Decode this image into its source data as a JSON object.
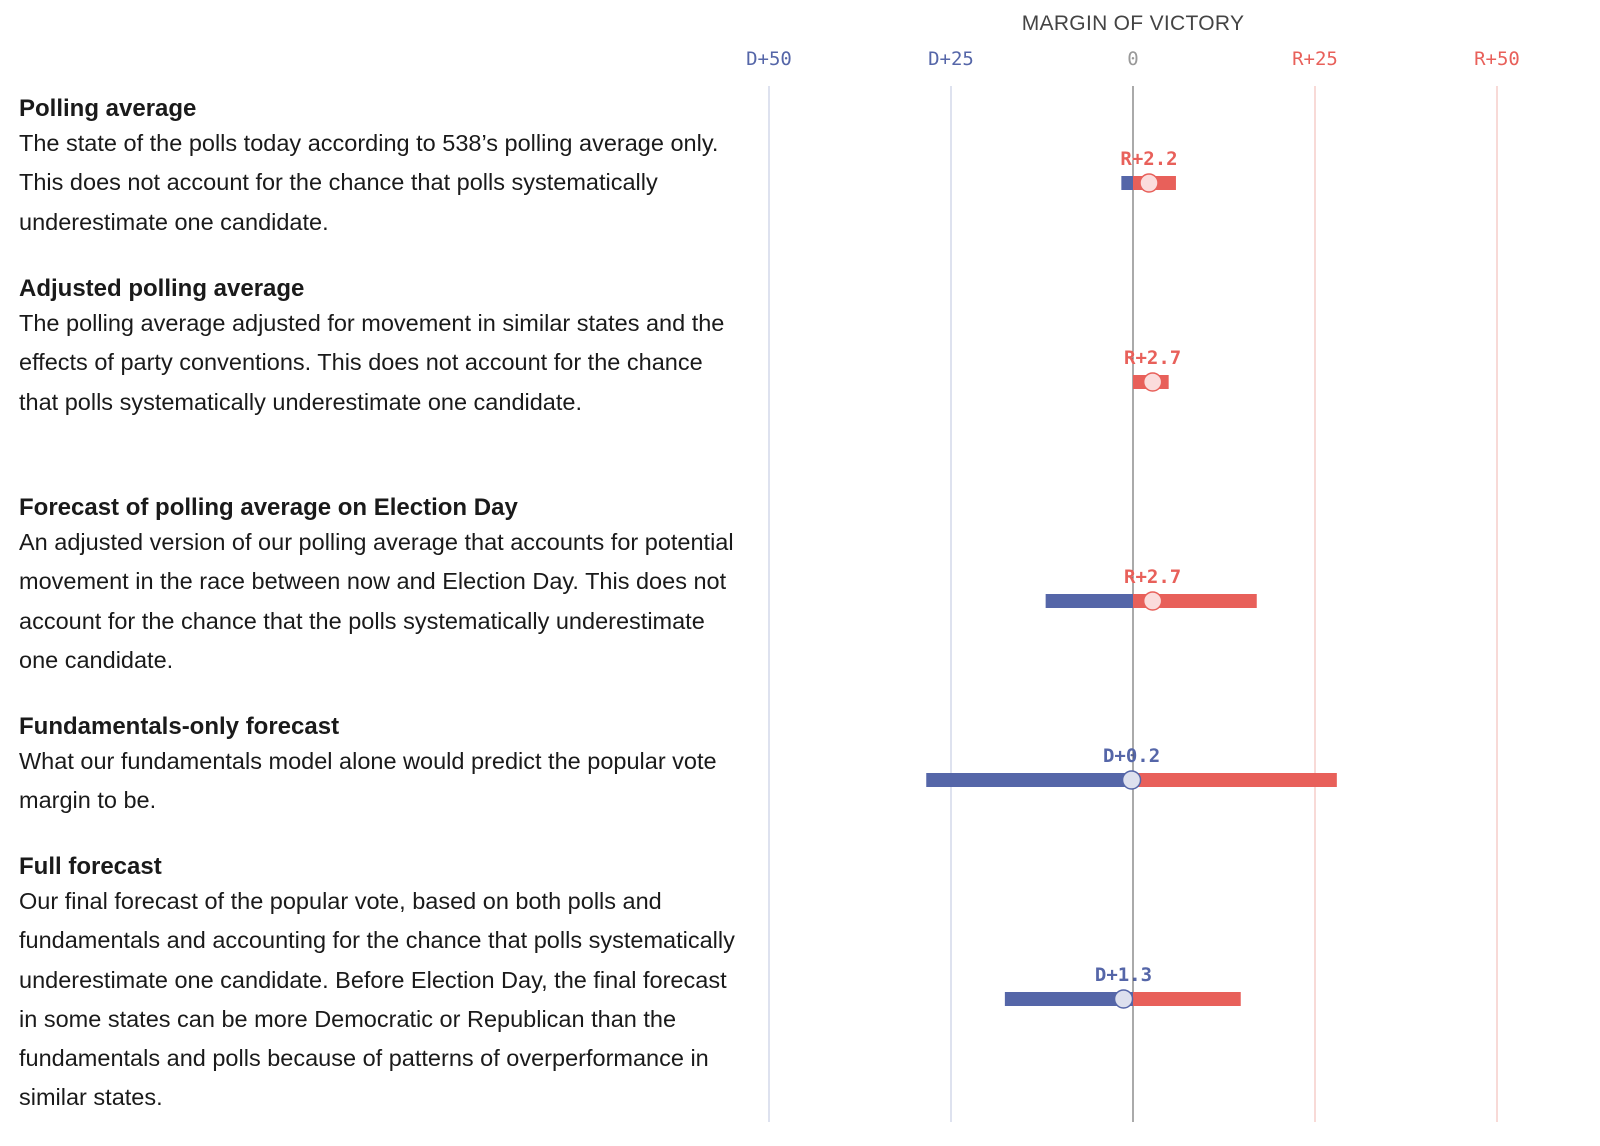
{
  "chart_data": {
    "type": "range-dot",
    "xlabel": "MARGIN OF VICTORY",
    "xlim": [
      -50,
      50
    ],
    "ticks": [
      {
        "value": -50,
        "label": "D+50"
      },
      {
        "value": -25,
        "label": "D+25"
      },
      {
        "value": 0,
        "label": "0"
      },
      {
        "value": 25,
        "label": "R+25"
      },
      {
        "value": 50,
        "label": "R+50"
      }
    ],
    "grid": true,
    "colors": {
      "dem": "#5566a8",
      "rep": "#e8605a",
      "dem_light": "#dde0ee",
      "rep_light": "#fbdcdc",
      "grid_dem": "#d4d8ea",
      "grid_rep": "#f5cdca",
      "zero": "#555555"
    },
    "rows": [
      {
        "title": "Polling average",
        "description": "The state of the polls today according to 538’s polling average only. This does not account for the chance that polls systematically underestimate one candidate.",
        "value": 2.2,
        "label": "R+2.2",
        "low": -1.6,
        "high": 5.9
      },
      {
        "title": "Adjusted polling average",
        "description": "The polling average adjusted for movement in similar states and the effects of party conventions. This does not account for the chance that polls systematically underestimate one candidate.",
        "value": 2.7,
        "label": "R+2.7",
        "low": 0,
        "high": 4.9
      },
      {
        "title": "Forecast of polling average on Election Day",
        "description": "An adjusted version of our polling average that accounts for potential movement in the race between now and Election Day. This does not account for the chance that the polls systematically underestimate one candidate.",
        "value": 2.7,
        "label": "R+2.7",
        "low": -12,
        "high": 17
      },
      {
        "title": "Fundamentals-only forecast",
        "description": "What our fundamentals model alone would predict the popular vote margin to be.",
        "value": -0.2,
        "label": "D+0.2",
        "low": -28.4,
        "high": 28
      },
      {
        "title": "Full forecast",
        "description": "Our final forecast of the popular vote, based on both polls and fundamentals and accounting for the chance that polls systematically underestimate one candidate. Before Election Day, the final forecast in some states can be more Democratic or Republican than the fundamentals and polls because of patterns of overperformance in similar states.",
        "value": -1.3,
        "label": "D+1.3",
        "low": -17.6,
        "high": 14.8
      }
    ]
  }
}
